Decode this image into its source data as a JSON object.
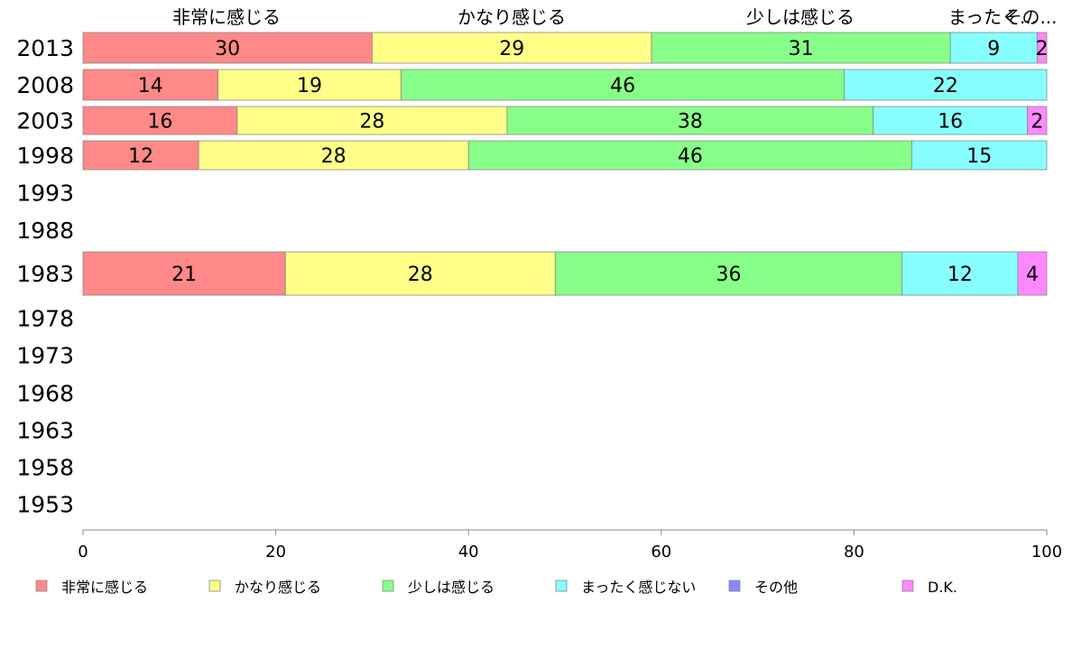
{
  "chart_data": {
    "type": "bar",
    "orientation": "horizontal",
    "stacked": true,
    "categories": [
      "2013",
      "2008",
      "2003",
      "1998",
      "1993",
      "1988",
      "1983",
      "1978",
      "1973",
      "1968",
      "1963",
      "1958",
      "1953"
    ],
    "series": [
      {
        "name": "非常に感じる",
        "color": "#ff8888",
        "values": [
          30,
          14,
          16,
          12,
          null,
          null,
          21,
          null,
          null,
          null,
          null,
          null,
          null
        ]
      },
      {
        "name": "かなり感じる",
        "color": "#ffff88",
        "values": [
          29,
          19,
          28,
          28,
          null,
          null,
          28,
          null,
          null,
          null,
          null,
          null,
          null
        ]
      },
      {
        "name": "少しは感じる",
        "color": "#88ff88",
        "values": [
          31,
          46,
          38,
          46,
          null,
          null,
          36,
          null,
          null,
          null,
          null,
          null,
          null
        ]
      },
      {
        "name": "まったく感じない",
        "color": "#88ffff",
        "values": [
          9,
          22,
          16,
          15,
          null,
          null,
          12,
          null,
          null,
          null,
          null,
          null,
          null
        ]
      },
      {
        "name": "その他",
        "color": "#8888ff",
        "values": [
          0,
          0,
          0,
          0,
          null,
          null,
          0,
          null,
          null,
          null,
          null,
          null,
          null
        ]
      },
      {
        "name": "D.K.",
        "color": "#ff88ff",
        "values": [
          2,
          0,
          2,
          0,
          null,
          null,
          4,
          null,
          null,
          null,
          null,
          null,
          null
        ]
      }
    ],
    "top_labels": [
      "非常に感じる",
      "かなり感じる",
      "少しは感じる",
      "まったく...",
      "その..."
    ],
    "x_ticks": [
      "0",
      "20",
      "40",
      "60",
      "80",
      "100"
    ],
    "xlim": [
      0,
      100
    ],
    "legend_position": "bottom",
    "grid": false
  }
}
